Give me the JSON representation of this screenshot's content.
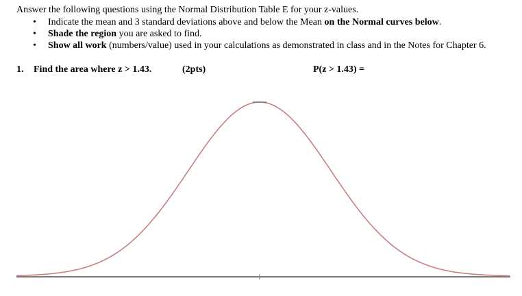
{
  "instructions": {
    "intro": "Answer the following questions using the Normal Distribution Table E for your z-values.",
    "bullets": [
      {
        "parts": [
          {
            "text": "Indicate the mean and 3 standard deviations above and below the Mean ",
            "bold": false
          },
          {
            "text": "on the Normal curves below",
            "bold": true
          },
          {
            "text": ".",
            "bold": false
          }
        ]
      },
      {
        "parts": [
          {
            "text": "Shade the region",
            "bold": true
          },
          {
            "text": " you are asked to find.",
            "bold": false
          }
        ]
      },
      {
        "parts": [
          {
            "text": "Show all work",
            "bold": true
          },
          {
            "text": " (numbers/value) used in your calculations as demonstrated in class and in the Notes for Chapter 6.",
            "bold": false
          }
        ]
      }
    ],
    "bullet_glyph": "•"
  },
  "question1": {
    "number": "1.",
    "text": "Find the area where z > 1.43.",
    "points": "(2pts)",
    "answer_label": "P(z > 1.43) ="
  },
  "colors": {
    "curve": "#c78080",
    "axis": "#7a7a7a"
  }
}
